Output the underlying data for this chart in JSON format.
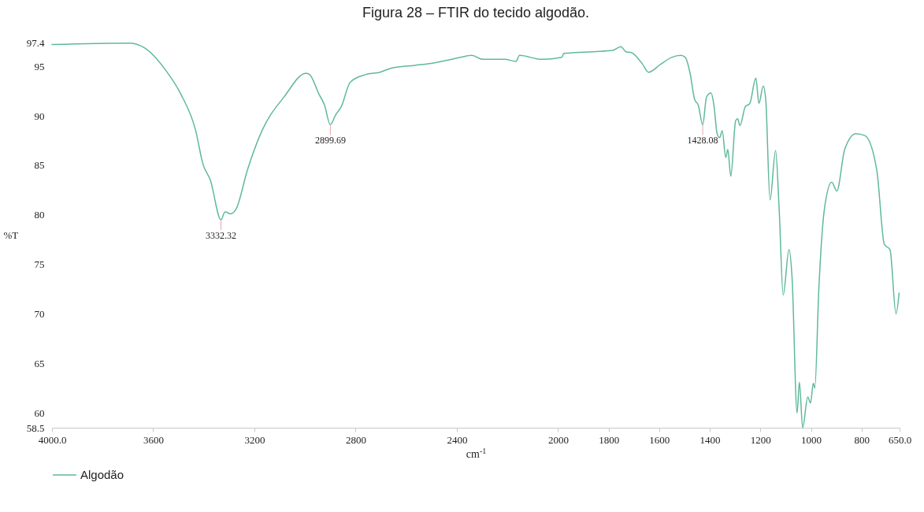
{
  "chart_data": {
    "type": "line",
    "title": "Figura 28 – FTIR do tecido algodão.",
    "xlabel": "cm$^{-1}$",
    "ylabel": "%T",
    "xlim": [
      4000,
      650
    ],
    "ylim": [
      58.5,
      97.4
    ],
    "xticks": [
      {
        "value": 4000,
        "label": "4000.0"
      },
      3600,
      3200,
      2800,
      2400,
      2000,
      1800,
      1600,
      1400,
      1200,
      1000,
      800,
      {
        "value": 650,
        "label": "650.0"
      }
    ],
    "yticks": [
      58.5,
      60,
      65,
      70,
      75,
      80,
      85,
      90,
      95,
      97.4
    ],
    "grid": false,
    "legend": "bottom",
    "marker": "none",
    "line_style": "solid",
    "annotations": [
      {
        "text": "3332.32",
        "x": 3332.32,
        "y": 79.5
      },
      {
        "text": "2899.69",
        "x": 2899.69,
        "y": 89.1
      },
      {
        "text": "1428.08",
        "x": 1428.08,
        "y": 89.1
      }
    ],
    "series": [
      {
        "name": "Algodão",
        "color": "#5fb99b",
        "x": [
          4000,
          3695,
          3636,
          3549,
          3491,
          3432,
          3403,
          3374,
          3332,
          3316,
          3294,
          3272,
          3228,
          3170,
          3083,
          2996,
          2981,
          2945,
          2923,
          2900,
          2879,
          2857,
          2821,
          2763,
          2704,
          2661,
          2566,
          2501,
          2384,
          2341,
          2297,
          2210,
          2166,
          2152,
          2064,
          1985,
          1977,
          1886,
          1784,
          1752,
          1730,
          1712,
          1668,
          1642,
          1595,
          1551,
          1515,
          1497,
          1478,
          1460,
          1446,
          1428,
          1413,
          1395,
          1384,
          1371,
          1361,
          1351,
          1337,
          1329,
          1317,
          1298,
          1290,
          1281,
          1260,
          1242,
          1218,
          1206,
          1189,
          1179,
          1162,
          1140,
          1126,
          1110,
          1087,
          1075,
          1055,
          1046,
          1033,
          1013,
          1002,
          991,
          985,
          969,
          947,
          918,
          898,
          867,
          823,
          787,
          740,
          710,
          688,
          664,
          652
        ],
        "values": [
          97.2,
          97.35,
          96.9,
          94.55,
          92.2,
          88.5,
          85.1,
          83.5,
          79.5,
          80.3,
          80.1,
          80.6,
          84.5,
          88.5,
          91.9,
          94.3,
          94.15,
          92.2,
          91.1,
          89.1,
          90.1,
          90.9,
          93.4,
          94.15,
          94.4,
          94.8,
          95.1,
          95.3,
          95.9,
          96.1,
          95.7,
          95.7,
          95.5,
          96.1,
          95.7,
          95.9,
          96.3,
          96.45,
          96.6,
          96.98,
          96.45,
          96.4,
          95.3,
          94.4,
          95.2,
          95.9,
          96.1,
          95.9,
          94.3,
          91.65,
          91.1,
          89.1,
          91.9,
          92.3,
          91.1,
          88.2,
          87.8,
          88.5,
          85.8,
          86.6,
          83.9,
          89.5,
          89.7,
          89.0,
          90.9,
          91.25,
          93.8,
          91.25,
          93.0,
          91.65,
          81.5,
          86.5,
          80.6,
          71.9,
          76.5,
          73.7,
          60.0,
          63.1,
          58.5,
          61.6,
          61.0,
          63.0,
          62.5,
          72.6,
          80.6,
          83.3,
          82.4,
          86.6,
          88.2,
          88.0,
          84.5,
          77.0,
          76.5,
          70.0,
          72.1
        ]
      }
    ]
  }
}
